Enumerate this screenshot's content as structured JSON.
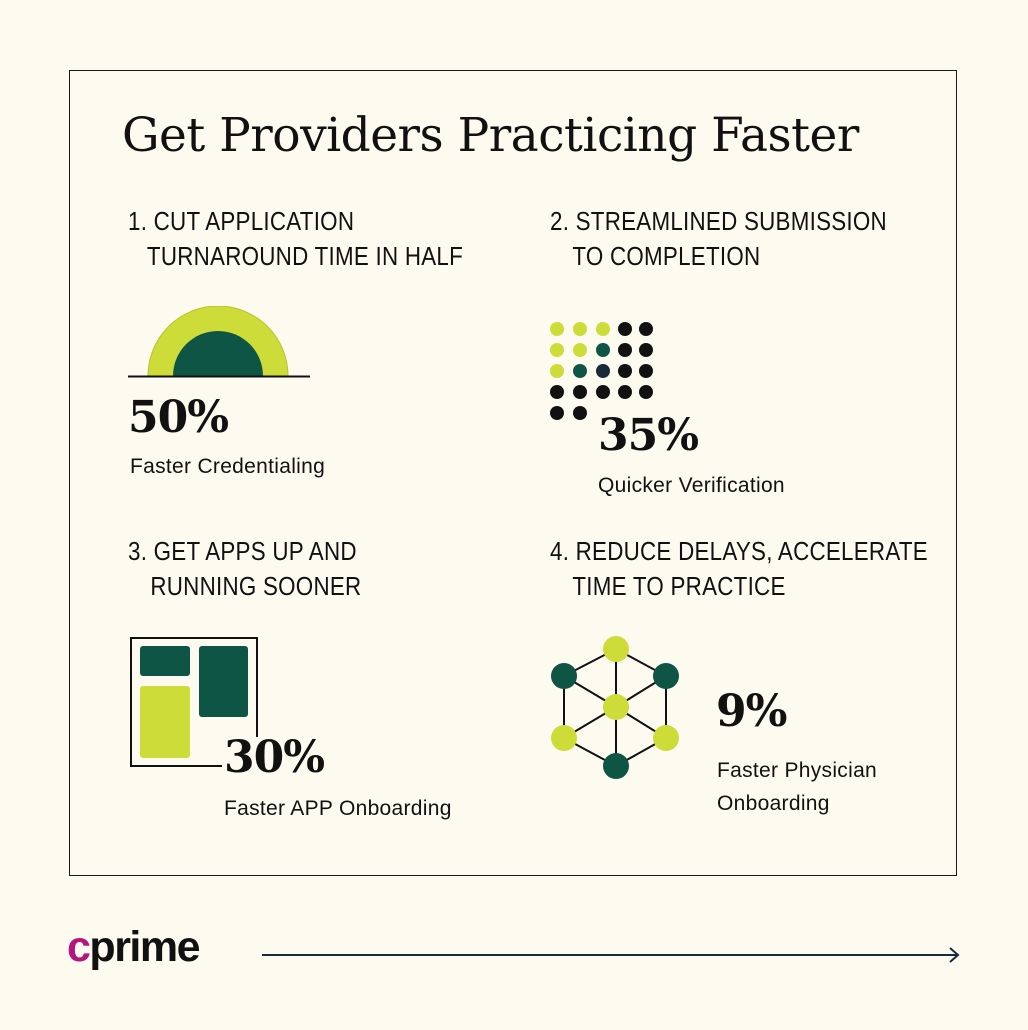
{
  "title": "Get Providers Practicing Faster",
  "sections": [
    {
      "heading_line1": "1. CUT APPLICATION",
      "heading_line2": "TURNAROUND TIME IN HALF",
      "stat": "50%",
      "caption": "Faster Credentialing",
      "icon": "half-circle-icon"
    },
    {
      "heading_line1": "2. STREAMLINED SUBMISSION",
      "heading_line2": "TO COMPLETION",
      "stat": "35%",
      "caption": "Quicker Verification",
      "icon": "dot-grid-icon"
    },
    {
      "heading_line1": "3. GET APPS UP AND",
      "heading_line2": "RUNNING SOONER",
      "stat": "30%",
      "caption": "Faster APP Onboarding",
      "icon": "app-blocks-icon"
    },
    {
      "heading_line1": "4. REDUCE DELAYS, ACCELERATE",
      "heading_line2": "TIME TO PRACTICE",
      "stat": "9%",
      "caption_line1": "Faster Physician",
      "caption_line2": "Onboarding",
      "icon": "network-cube-icon"
    }
  ],
  "logo": {
    "accent": "c",
    "rest": "prime"
  },
  "colors": {
    "background": "#fdfaf0",
    "lime": "#cddc38",
    "dark_green": "#0e5546",
    "black": "#111111",
    "magenta": "#b5157e"
  },
  "footer_icon": "arrow-right-icon"
}
